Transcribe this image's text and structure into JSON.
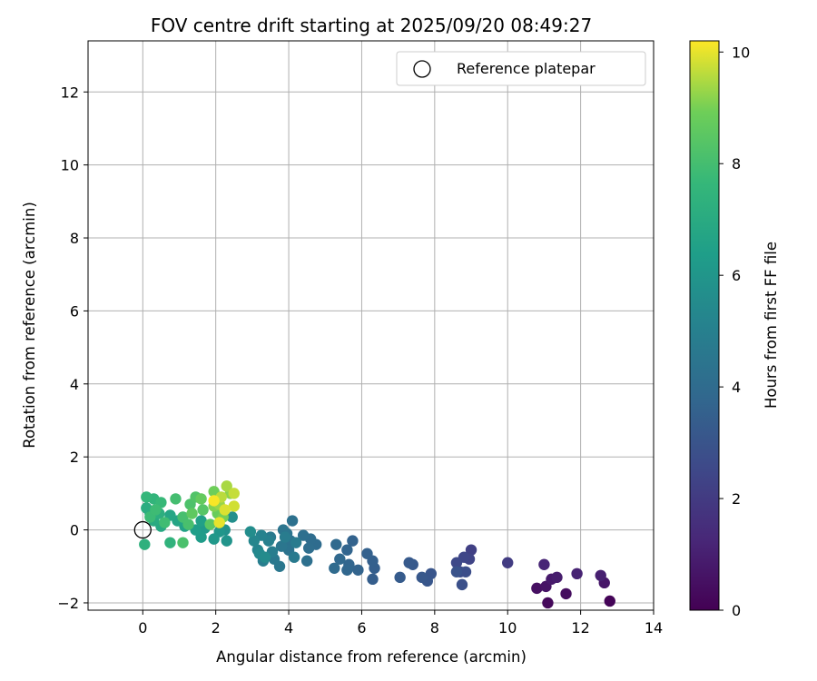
{
  "chart_data": {
    "type": "scatter",
    "title": "FOV centre drift starting at 2025/09/20 08:49:27",
    "xlabel": "Angular distance from reference (arcmin)",
    "ylabel": "Rotation from reference (arcmin)",
    "xlim": [
      -1.5,
      14
    ],
    "ylim": [
      -2.2,
      13.4
    ],
    "xticks": [
      0,
      2,
      4,
      6,
      8,
      10,
      12,
      14
    ],
    "yticks": [
      -2,
      0,
      2,
      4,
      6,
      8,
      10,
      12
    ],
    "grid": true,
    "legend": {
      "position": "top-right",
      "label": "Reference platepar",
      "marker": "open-circle"
    },
    "reference_point": {
      "x": 0,
      "y": 0
    },
    "colorbar": {
      "label": "Hours from first FF file",
      "range": [
        0,
        10.2
      ],
      "ticks": [
        0,
        2,
        4,
        6,
        8,
        10
      ],
      "colormap": "viridis"
    },
    "series": [
      {
        "name": "FOV centre",
        "points": [
          [
            12.8,
            -1.95,
            0.1
          ],
          [
            11.1,
            -2.0,
            0.25
          ],
          [
            11.6,
            -1.75,
            0.4
          ],
          [
            10.8,
            -1.6,
            0.5
          ],
          [
            11.05,
            -1.55,
            0.6
          ],
          [
            12.65,
            -1.45,
            0.7
          ],
          [
            11.2,
            -1.35,
            0.8
          ],
          [
            11.35,
            -1.3,
            0.9
          ],
          [
            12.55,
            -1.25,
            1.0
          ],
          [
            11.9,
            -1.2,
            1.1
          ],
          [
            11.0,
            -0.95,
            1.2
          ],
          [
            10.0,
            -0.9,
            2.05
          ],
          [
            9.0,
            -0.55,
            2.2
          ],
          [
            8.95,
            -0.8,
            2.35
          ],
          [
            8.8,
            -0.75,
            2.45
          ],
          [
            8.6,
            -0.9,
            2.55
          ],
          [
            8.7,
            -1.15,
            2.65
          ],
          [
            8.85,
            -1.15,
            2.75
          ],
          [
            8.75,
            -1.5,
            2.85
          ],
          [
            8.6,
            -1.15,
            2.95
          ],
          [
            7.9,
            -1.2,
            3.05
          ],
          [
            7.8,
            -1.4,
            3.1
          ],
          [
            7.65,
            -1.3,
            3.15
          ],
          [
            7.4,
            -0.95,
            3.2
          ],
          [
            7.3,
            -0.9,
            3.25
          ],
          [
            7.05,
            -1.3,
            3.3
          ],
          [
            6.3,
            -1.35,
            3.4
          ],
          [
            6.35,
            -1.05,
            3.45
          ],
          [
            6.3,
            -0.85,
            3.5
          ],
          [
            6.15,
            -0.65,
            3.55
          ],
          [
            5.75,
            -0.3,
            3.6
          ],
          [
            5.9,
            -1.1,
            3.65
          ],
          [
            5.6,
            -0.55,
            3.7
          ],
          [
            5.65,
            -0.95,
            3.75
          ],
          [
            5.6,
            -1.1,
            3.8
          ],
          [
            5.4,
            -0.8,
            3.85
          ],
          [
            5.3,
            -0.4,
            3.9
          ],
          [
            5.25,
            -1.05,
            3.95
          ],
          [
            4.75,
            -0.4,
            4.0
          ],
          [
            4.6,
            -0.25,
            4.05
          ],
          [
            4.55,
            -0.5,
            4.1
          ],
          [
            4.4,
            -0.15,
            4.15
          ],
          [
            4.5,
            -0.85,
            4.2
          ],
          [
            4.1,
            0.25,
            4.25
          ],
          [
            4.05,
            -0.3,
            4.3
          ],
          [
            4.0,
            -0.55,
            4.35
          ],
          [
            3.95,
            -0.1,
            4.4
          ],
          [
            3.85,
            0.0,
            4.45
          ],
          [
            3.8,
            -0.45,
            4.5
          ],
          [
            3.75,
            -1.0,
            4.55
          ],
          [
            3.6,
            -0.8,
            4.6
          ],
          [
            3.5,
            -0.2,
            4.65
          ],
          [
            4.15,
            -0.75,
            4.7
          ],
          [
            4.2,
            -0.35,
            4.75
          ],
          [
            3.9,
            -0.2,
            4.8
          ],
          [
            3.55,
            -0.6,
            4.85
          ],
          [
            3.3,
            -0.85,
            4.9
          ],
          [
            3.45,
            -0.3,
            5.0
          ],
          [
            3.25,
            -0.15,
            5.1
          ],
          [
            3.15,
            -0.55,
            5.2
          ],
          [
            3.05,
            -0.3,
            5.3
          ],
          [
            3.2,
            -0.65,
            5.4
          ],
          [
            3.35,
            -0.75,
            5.5
          ],
          [
            2.95,
            -0.05,
            5.6
          ],
          [
            2.45,
            0.35,
            5.7
          ],
          [
            2.25,
            0.0,
            5.8
          ],
          [
            2.3,
            -0.3,
            5.9
          ],
          [
            2.1,
            -0.05,
            6.0
          ],
          [
            1.95,
            -0.25,
            6.1
          ],
          [
            1.7,
            0.05,
            6.2
          ],
          [
            1.6,
            -0.2,
            6.3
          ],
          [
            1.45,
            0.0,
            6.4
          ],
          [
            1.6,
            0.25,
            6.5
          ],
          [
            1.15,
            0.1,
            6.6
          ],
          [
            0.95,
            0.25,
            6.7
          ],
          [
            0.75,
            0.4,
            6.8
          ],
          [
            0.5,
            0.1,
            6.9
          ],
          [
            0.3,
            0.25,
            7.0
          ],
          [
            0.2,
            0.45,
            7.05
          ],
          [
            0.1,
            0.6,
            7.1
          ],
          [
            0.45,
            0.45,
            7.2
          ],
          [
            0.05,
            -0.4,
            7.3
          ],
          [
            0.75,
            -0.35,
            7.4
          ],
          [
            0.3,
            0.85,
            7.5
          ],
          [
            0.1,
            0.9,
            7.6
          ],
          [
            0.5,
            0.75,
            7.7
          ],
          [
            0.2,
            0.35,
            7.8
          ],
          [
            0.35,
            0.55,
            7.85
          ],
          [
            0.6,
            0.2,
            7.9
          ],
          [
            0.9,
            0.85,
            8.0
          ],
          [
            1.1,
            0.35,
            8.05
          ],
          [
            1.25,
            0.15,
            8.1
          ],
          [
            1.1,
            -0.35,
            8.15
          ],
          [
            1.3,
            0.7,
            8.2
          ],
          [
            1.45,
            0.9,
            8.3
          ],
          [
            1.65,
            0.55,
            8.4
          ],
          [
            1.85,
            0.15,
            8.5
          ],
          [
            1.35,
            0.45,
            8.6
          ],
          [
            1.6,
            0.85,
            8.7
          ],
          [
            2.05,
            0.45,
            8.8
          ],
          [
            1.95,
            1.05,
            8.9
          ],
          [
            2.2,
            0.35,
            9.0
          ],
          [
            1.95,
            0.65,
            9.1
          ],
          [
            2.4,
            1.0,
            9.2
          ],
          [
            2.1,
            0.7,
            9.3
          ],
          [
            2.3,
            1.2,
            9.45
          ],
          [
            2.15,
            0.9,
            9.6
          ],
          [
            2.5,
            1.0,
            9.7
          ],
          [
            2.5,
            0.65,
            9.8
          ],
          [
            2.25,
            0.55,
            9.9
          ],
          [
            2.1,
            0.2,
            10.0
          ],
          [
            1.95,
            0.8,
            10.15
          ]
        ]
      }
    ]
  }
}
